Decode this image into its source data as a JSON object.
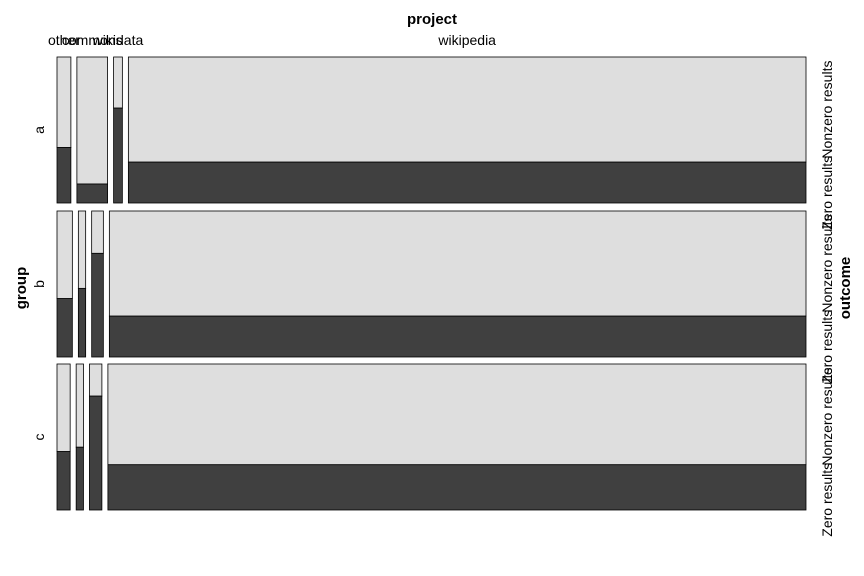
{
  "chart_data": {
    "type": "mosaic",
    "title": "",
    "x_variable": "project",
    "y_variable": "group",
    "fill_variable": "outcome",
    "column_categories": [
      "other",
      "commons",
      "wikidata",
      "wikipedia"
    ],
    "row_categories": [
      "a",
      "b",
      "c"
    ],
    "fill_categories": [
      "Nonzero results",
      "Zero results"
    ],
    "fill_colors": {
      "Nonzero results": "#dedede",
      "Zero results": "#404040"
    },
    "cells": [
      {
        "group": "a",
        "project_shares": [
          0.019,
          0.042,
          0.012,
          0.927
        ],
        "zero_results_share": [
          0.38,
          0.13,
          0.65,
          0.28
        ]
      },
      {
        "group": "b",
        "project_shares": [
          0.021,
          0.01,
          0.016,
          0.953
        ],
        "zero_results_share": [
          0.4,
          0.47,
          0.71,
          0.28
        ]
      },
      {
        "group": "c",
        "project_shares": [
          0.018,
          0.01,
          0.017,
          0.955
        ],
        "zero_results_share": [
          0.4,
          0.43,
          0.78,
          0.31
        ]
      }
    ],
    "grid": false,
    "legend": "none"
  }
}
